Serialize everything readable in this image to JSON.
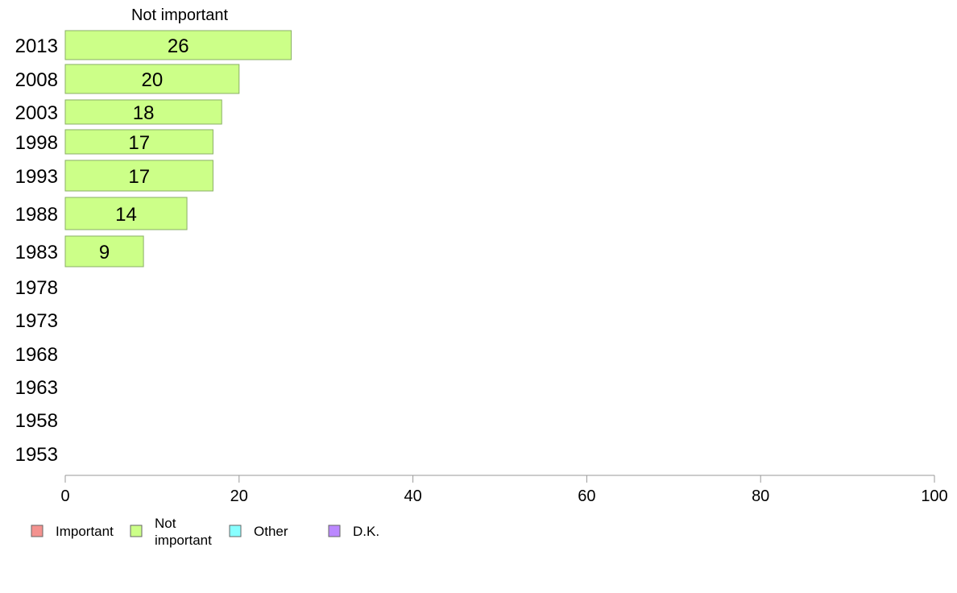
{
  "chart_data": {
    "type": "bar",
    "orientation": "horizontal",
    "series_title": "Not important",
    "categories": [
      "2013",
      "2008",
      "2003",
      "1998",
      "1993",
      "1988",
      "1983",
      "1978",
      "1973",
      "1968",
      "1963",
      "1958",
      "1953"
    ],
    "series": [
      {
        "name": "Not important",
        "values": [
          26,
          20,
          18,
          17,
          17,
          14,
          9,
          null,
          null,
          null,
          null,
          null,
          null
        ]
      }
    ],
    "data_labels": [
      "26",
      "20",
      "18",
      "17",
      "17",
      "14",
      "9",
      "",
      "",
      "",
      "",
      "",
      ""
    ],
    "xlim": [
      0,
      100
    ],
    "x_ticks": [
      0,
      20,
      40,
      60,
      80,
      100
    ],
    "x_tick_labels": [
      "0",
      "20",
      "40",
      "60",
      "80",
      "100"
    ],
    "grid": false,
    "legend_position": "bottom-left",
    "legend": [
      {
        "label": "Important",
        "color": "#f4928f"
      },
      {
        "label": "Not important",
        "color": "#ccff88"
      },
      {
        "label": "Other",
        "color": "#88ffff"
      },
      {
        "label": "D.K.",
        "color": "#bb88ff"
      }
    ],
    "bar_color": "#ccff88",
    "bar_edge_color": "#8aaf66"
  }
}
